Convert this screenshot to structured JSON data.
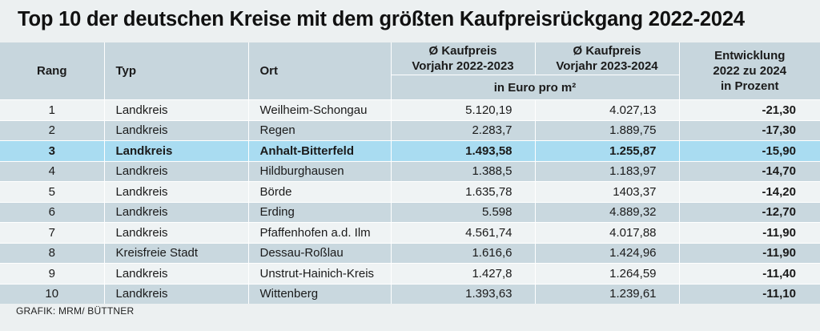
{
  "title": "Top 10 der deutschen Kreise mit dem größten Kaufpreisrückgang 2022-2024",
  "headers": {
    "rang": "Rang",
    "typ": "Typ",
    "ort": "Ort",
    "price1_l1": "Ø Kaufpreis",
    "price1_l2": "Vorjahr 2022-2023",
    "price2_l1": "Ø Kaufpreis",
    "price2_l2": "Vorjahr 2023-2024",
    "unit": "in Euro pro m²",
    "ent_l1": "Entwicklung",
    "ent_l2": "2022 zu 2024",
    "ent_l3": "in Prozent"
  },
  "rows": [
    {
      "rang": "1",
      "typ": "Landkreis",
      "ort": "Weilheim-Schongau",
      "p1": "5.120,19",
      "p2": "4.027,13",
      "ent": "-21,30"
    },
    {
      "rang": "2",
      "typ": "Landkreis",
      "ort": "Regen",
      "p1": "2.283,7",
      "p2": "1.889,75",
      "ent": "-17,30"
    },
    {
      "rang": "3",
      "typ": "Landkreis",
      "ort": "Anhalt-Bitterfeld",
      "p1": "1.493,58",
      "p2": "1.255,87",
      "ent": "-15,90"
    },
    {
      "rang": "4",
      "typ": "Landkreis",
      "ort": "Hildburghausen",
      "p1": "1.388,5",
      "p2": "1.183,97",
      "ent": "-14,70"
    },
    {
      "rang": "5",
      "typ": "Landkreis",
      "ort": "Börde",
      "p1": "1.635,78",
      "p2": "1403,37",
      "ent": "-14,20"
    },
    {
      "rang": "6",
      "typ": "Landkreis",
      "ort": "Erding",
      "p1": "5.598",
      "p2": "4.889,32",
      "ent": "-12,70"
    },
    {
      "rang": "7",
      "typ": "Landkreis",
      "ort": "Pfaffenhofen a.d. Ilm",
      "p1": "4.561,74",
      "p2": "4.017,88",
      "ent": "-11,90"
    },
    {
      "rang": "8",
      "typ": "Kreisfreie Stadt",
      "ort": "Dessau-Roßlau",
      "p1": "1.616,6",
      "p2": "1.424,96",
      "ent": "-11,90"
    },
    {
      "rang": "9",
      "typ": "Landkreis",
      "ort": "Unstrut-Hainich-Kreis",
      "p1": "1.427,8",
      "p2": "1.264,59",
      "ent": "-11,40"
    },
    {
      "rang": "10",
      "typ": "Landkreis",
      "ort": "Wittenberg",
      "p1": "1.393,63",
      "p2": "1.239,61",
      "ent": "-11,10"
    }
  ],
  "highlight_row": 3,
  "source": "GRAFIK: MRM/ BÜTTNER",
  "colors": {
    "header_bg": "#c7d6dd",
    "row_light": "#eff3f4",
    "row_dark": "#c9d8df",
    "highlight": "#a9dcf1"
  }
}
